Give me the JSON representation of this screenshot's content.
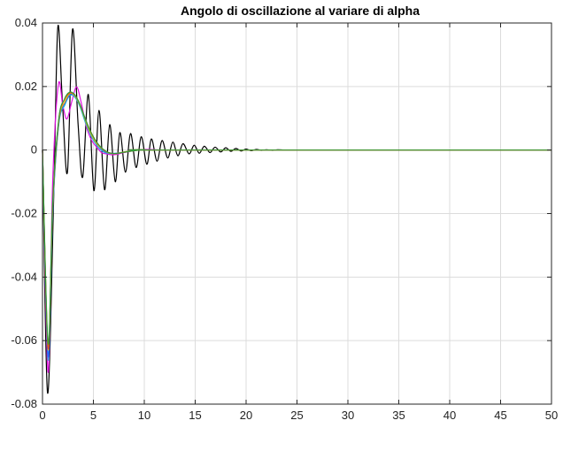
{
  "chart_data": {
    "type": "line",
    "title": "Angolo di oscillazione al variare di alpha",
    "xlabel": "",
    "ylabel": "",
    "xlim": [
      0,
      50
    ],
    "ylim": [
      -0.08,
      0.04
    ],
    "grid": true,
    "xticks": [
      0,
      5,
      10,
      15,
      20,
      25,
      30,
      35,
      40,
      45,
      50
    ],
    "xtick_labels": [
      "0",
      "5",
      "10",
      "15",
      "20",
      "25",
      "30",
      "35",
      "40",
      "45",
      "50"
    ],
    "yticks": [
      -0.08,
      -0.06,
      -0.04,
      -0.02,
      0,
      0.02,
      0.04
    ],
    "ytick_labels": [
      "-0.08",
      "-0.06",
      "-0.04",
      "-0.02",
      "0",
      "0.02",
      "0.04"
    ],
    "series": [
      {
        "color": "#000000",
        "x": [
          0,
          0.5,
          1.1,
          1.5,
          1.95,
          2.45,
          2.95,
          3.5,
          3.95,
          4.5,
          5.05,
          5.55,
          6.1,
          6.6,
          7.15,
          7.6,
          8.15,
          8.65,
          9.2,
          9.7,
          10.25,
          10.7,
          11.25,
          11.75,
          12.3,
          12.8,
          13.3,
          13.8,
          14.4,
          14.9,
          15.4,
          15.9,
          16.45,
          16.95,
          17.5,
          18.0,
          18.5,
          19.0,
          19.5,
          20.0,
          20.5,
          21.0,
          21.5,
          22.0,
          22.6,
          23.1,
          23.7,
          24.2,
          25.0,
          26.0,
          27.0,
          28.0,
          30.0,
          35.0,
          40.0,
          50.0
        ],
        "y": [
          0,
          -0.0765,
          -0.015,
          0.0385,
          0.0155,
          -0.007,
          0.038,
          0.008,
          -0.0085,
          0.0175,
          -0.0128,
          0.0125,
          -0.0125,
          0.008,
          -0.01,
          0.0055,
          -0.007,
          0.0052,
          -0.0055,
          0.0042,
          -0.0045,
          0.0035,
          -0.0035,
          0.003,
          -0.0025,
          0.0025,
          -0.0018,
          0.002,
          -0.0012,
          0.0015,
          -0.001,
          0.0012,
          -0.0008,
          0.0009,
          -0.0006,
          0.0007,
          -0.0004,
          0.0005,
          -0.0003,
          0.0003,
          -0.0002,
          0.0002,
          -0.0001,
          0.0001,
          -0.0001,
          0.0001,
          0,
          0,
          0,
          0,
          0,
          0,
          0,
          0,
          0,
          0
        ]
      },
      {
        "color": "#e010e0",
        "x": [
          0,
          0.55,
          1.0,
          1.55,
          2.0,
          2.4,
          2.9,
          3.35,
          3.8,
          4.3,
          4.8,
          5.3,
          5.8,
          6.3,
          6.9,
          7.5,
          8.0,
          9.0,
          10.0,
          11.0,
          12.0,
          14.0,
          50.0
        ],
        "y": [
          0,
          -0.07,
          -0.01,
          0.0205,
          0.014,
          0.0098,
          0.0155,
          0.0199,
          0.015,
          0.0075,
          0.0032,
          0.001,
          -0.0008,
          -0.0012,
          -0.0015,
          -0.0012,
          -0.0008,
          -0.0002,
          0.0002,
          0.0001,
          0,
          0,
          0
        ]
      },
      {
        "color": "#22b8d8",
        "x": [
          0,
          0.55,
          1.0,
          1.6,
          2.2,
          2.7,
          3.2,
          3.7,
          4.2,
          4.8,
          5.4,
          6.0,
          6.6,
          7.3,
          8.0,
          9.0,
          10.0,
          12.0,
          50.0
        ],
        "y": [
          0,
          -0.066,
          -0.02,
          0.008,
          0.0142,
          0.0172,
          0.0165,
          0.0135,
          0.0088,
          0.0042,
          0.0012,
          -0.0006,
          -0.0011,
          -0.001,
          -0.0006,
          -0.0001,
          0.0001,
          0,
          0
        ]
      },
      {
        "color": "#2060ff",
        "x": [
          0,
          0.55,
          1.0,
          1.6,
          2.2,
          2.75,
          3.25,
          3.75,
          4.3,
          4.9,
          5.5,
          6.1,
          6.7,
          7.4,
          8.1,
          9.0,
          10.0,
          12.0,
          50.0
        ],
        "y": [
          0,
          -0.065,
          -0.019,
          0.0085,
          0.0148,
          0.0175,
          0.0168,
          0.0138,
          0.009,
          0.0045,
          0.0014,
          -0.0005,
          -0.001,
          -0.001,
          -0.0006,
          -0.0002,
          0.0001,
          0,
          0
        ]
      },
      {
        "color": "#f2b705",
        "x": [
          0,
          0.55,
          1.0,
          1.6,
          2.2,
          2.7,
          3.2,
          3.7,
          4.2,
          4.7,
          5.3,
          5.9,
          6.5,
          7.2,
          8.0,
          9.0,
          10.0,
          12.0,
          50.0
        ],
        "y": [
          0,
          -0.0628,
          -0.018,
          0.009,
          0.0152,
          0.0178,
          0.017,
          0.014,
          0.0095,
          0.0055,
          0.0022,
          0.0002,
          -0.0009,
          -0.0011,
          -0.0006,
          -0.0002,
          0.0001,
          0,
          0
        ]
      },
      {
        "color": "#e85010",
        "x": [
          0,
          0.55,
          1.0,
          1.6,
          2.15,
          2.7,
          3.2,
          3.7,
          4.2,
          4.75,
          5.3,
          5.9,
          6.5,
          7.2,
          8.0,
          9.0,
          10.0,
          12.0,
          50.0
        ],
        "y": [
          0,
          -0.0625,
          -0.017,
          0.0095,
          0.0158,
          0.018,
          0.0172,
          0.0142,
          0.0098,
          0.0057,
          0.0025,
          0.0003,
          -0.0008,
          -0.0011,
          -0.0007,
          -0.0002,
          0.0001,
          0,
          0
        ]
      },
      {
        "color": "#2e9e3a",
        "x": [
          0,
          0.55,
          1.0,
          1.6,
          2.15,
          2.65,
          3.15,
          3.65,
          4.15,
          4.7,
          5.3,
          5.9,
          6.5,
          7.2,
          8.0,
          9.0,
          10.0,
          12.0,
          50.0
        ],
        "y": [
          0,
          -0.061,
          -0.0165,
          0.0098,
          0.016,
          0.0182,
          0.0175,
          0.0146,
          0.0102,
          0.006,
          0.0026,
          0.0004,
          -0.0008,
          -0.0011,
          -0.0007,
          -0.0002,
          0.0001,
          0,
          0
        ]
      }
    ]
  }
}
